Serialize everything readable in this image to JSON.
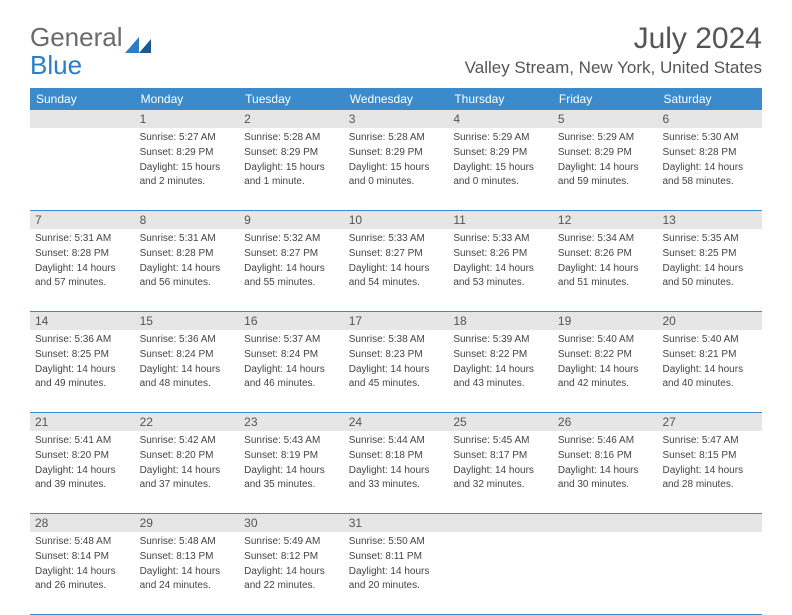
{
  "logo": {
    "text1": "General",
    "text2": "Blue"
  },
  "title": "July 2024",
  "location": "Valley Stream, New York, United States",
  "colors": {
    "header_bg": "#3b8bcc",
    "header_fg": "#ffffff",
    "daynum_bg": "#e6e6e6",
    "rule": "#3b8bcc",
    "text": "#444444",
    "title": "#555555",
    "logo_gray": "#6b6b6b",
    "logo_blue": "#2a7ec5"
  },
  "day_names": [
    "Sunday",
    "Monday",
    "Tuesday",
    "Wednesday",
    "Thursday",
    "Friday",
    "Saturday"
  ],
  "weeks": [
    [
      {
        "n": "",
        "sr": "",
        "ss": "",
        "dl": ""
      },
      {
        "n": "1",
        "sr": "Sunrise: 5:27 AM",
        "ss": "Sunset: 8:29 PM",
        "dl": "Daylight: 15 hours and 2 minutes."
      },
      {
        "n": "2",
        "sr": "Sunrise: 5:28 AM",
        "ss": "Sunset: 8:29 PM",
        "dl": "Daylight: 15 hours and 1 minute."
      },
      {
        "n": "3",
        "sr": "Sunrise: 5:28 AM",
        "ss": "Sunset: 8:29 PM",
        "dl": "Daylight: 15 hours and 0 minutes."
      },
      {
        "n": "4",
        "sr": "Sunrise: 5:29 AM",
        "ss": "Sunset: 8:29 PM",
        "dl": "Daylight: 15 hours and 0 minutes."
      },
      {
        "n": "5",
        "sr": "Sunrise: 5:29 AM",
        "ss": "Sunset: 8:29 PM",
        "dl": "Daylight: 14 hours and 59 minutes."
      },
      {
        "n": "6",
        "sr": "Sunrise: 5:30 AM",
        "ss": "Sunset: 8:28 PM",
        "dl": "Daylight: 14 hours and 58 minutes."
      }
    ],
    [
      {
        "n": "7",
        "sr": "Sunrise: 5:31 AM",
        "ss": "Sunset: 8:28 PM",
        "dl": "Daylight: 14 hours and 57 minutes."
      },
      {
        "n": "8",
        "sr": "Sunrise: 5:31 AM",
        "ss": "Sunset: 8:28 PM",
        "dl": "Daylight: 14 hours and 56 minutes."
      },
      {
        "n": "9",
        "sr": "Sunrise: 5:32 AM",
        "ss": "Sunset: 8:27 PM",
        "dl": "Daylight: 14 hours and 55 minutes."
      },
      {
        "n": "10",
        "sr": "Sunrise: 5:33 AM",
        "ss": "Sunset: 8:27 PM",
        "dl": "Daylight: 14 hours and 54 minutes."
      },
      {
        "n": "11",
        "sr": "Sunrise: 5:33 AM",
        "ss": "Sunset: 8:26 PM",
        "dl": "Daylight: 14 hours and 53 minutes."
      },
      {
        "n": "12",
        "sr": "Sunrise: 5:34 AM",
        "ss": "Sunset: 8:26 PM",
        "dl": "Daylight: 14 hours and 51 minutes."
      },
      {
        "n": "13",
        "sr": "Sunrise: 5:35 AM",
        "ss": "Sunset: 8:25 PM",
        "dl": "Daylight: 14 hours and 50 minutes."
      }
    ],
    [
      {
        "n": "14",
        "sr": "Sunrise: 5:36 AM",
        "ss": "Sunset: 8:25 PM",
        "dl": "Daylight: 14 hours and 49 minutes."
      },
      {
        "n": "15",
        "sr": "Sunrise: 5:36 AM",
        "ss": "Sunset: 8:24 PM",
        "dl": "Daylight: 14 hours and 48 minutes."
      },
      {
        "n": "16",
        "sr": "Sunrise: 5:37 AM",
        "ss": "Sunset: 8:24 PM",
        "dl": "Daylight: 14 hours and 46 minutes."
      },
      {
        "n": "17",
        "sr": "Sunrise: 5:38 AM",
        "ss": "Sunset: 8:23 PM",
        "dl": "Daylight: 14 hours and 45 minutes."
      },
      {
        "n": "18",
        "sr": "Sunrise: 5:39 AM",
        "ss": "Sunset: 8:22 PM",
        "dl": "Daylight: 14 hours and 43 minutes."
      },
      {
        "n": "19",
        "sr": "Sunrise: 5:40 AM",
        "ss": "Sunset: 8:22 PM",
        "dl": "Daylight: 14 hours and 42 minutes."
      },
      {
        "n": "20",
        "sr": "Sunrise: 5:40 AM",
        "ss": "Sunset: 8:21 PM",
        "dl": "Daylight: 14 hours and 40 minutes."
      }
    ],
    [
      {
        "n": "21",
        "sr": "Sunrise: 5:41 AM",
        "ss": "Sunset: 8:20 PM",
        "dl": "Daylight: 14 hours and 39 minutes."
      },
      {
        "n": "22",
        "sr": "Sunrise: 5:42 AM",
        "ss": "Sunset: 8:20 PM",
        "dl": "Daylight: 14 hours and 37 minutes."
      },
      {
        "n": "23",
        "sr": "Sunrise: 5:43 AM",
        "ss": "Sunset: 8:19 PM",
        "dl": "Daylight: 14 hours and 35 minutes."
      },
      {
        "n": "24",
        "sr": "Sunrise: 5:44 AM",
        "ss": "Sunset: 8:18 PM",
        "dl": "Daylight: 14 hours and 33 minutes."
      },
      {
        "n": "25",
        "sr": "Sunrise: 5:45 AM",
        "ss": "Sunset: 8:17 PM",
        "dl": "Daylight: 14 hours and 32 minutes."
      },
      {
        "n": "26",
        "sr": "Sunrise: 5:46 AM",
        "ss": "Sunset: 8:16 PM",
        "dl": "Daylight: 14 hours and 30 minutes."
      },
      {
        "n": "27",
        "sr": "Sunrise: 5:47 AM",
        "ss": "Sunset: 8:15 PM",
        "dl": "Daylight: 14 hours and 28 minutes."
      }
    ],
    [
      {
        "n": "28",
        "sr": "Sunrise: 5:48 AM",
        "ss": "Sunset: 8:14 PM",
        "dl": "Daylight: 14 hours and 26 minutes."
      },
      {
        "n": "29",
        "sr": "Sunrise: 5:48 AM",
        "ss": "Sunset: 8:13 PM",
        "dl": "Daylight: 14 hours and 24 minutes."
      },
      {
        "n": "30",
        "sr": "Sunrise: 5:49 AM",
        "ss": "Sunset: 8:12 PM",
        "dl": "Daylight: 14 hours and 22 minutes."
      },
      {
        "n": "31",
        "sr": "Sunrise: 5:50 AM",
        "ss": "Sunset: 8:11 PM",
        "dl": "Daylight: 14 hours and 20 minutes."
      },
      {
        "n": "",
        "sr": "",
        "ss": "",
        "dl": ""
      },
      {
        "n": "",
        "sr": "",
        "ss": "",
        "dl": ""
      },
      {
        "n": "",
        "sr": "",
        "ss": "",
        "dl": ""
      }
    ]
  ]
}
